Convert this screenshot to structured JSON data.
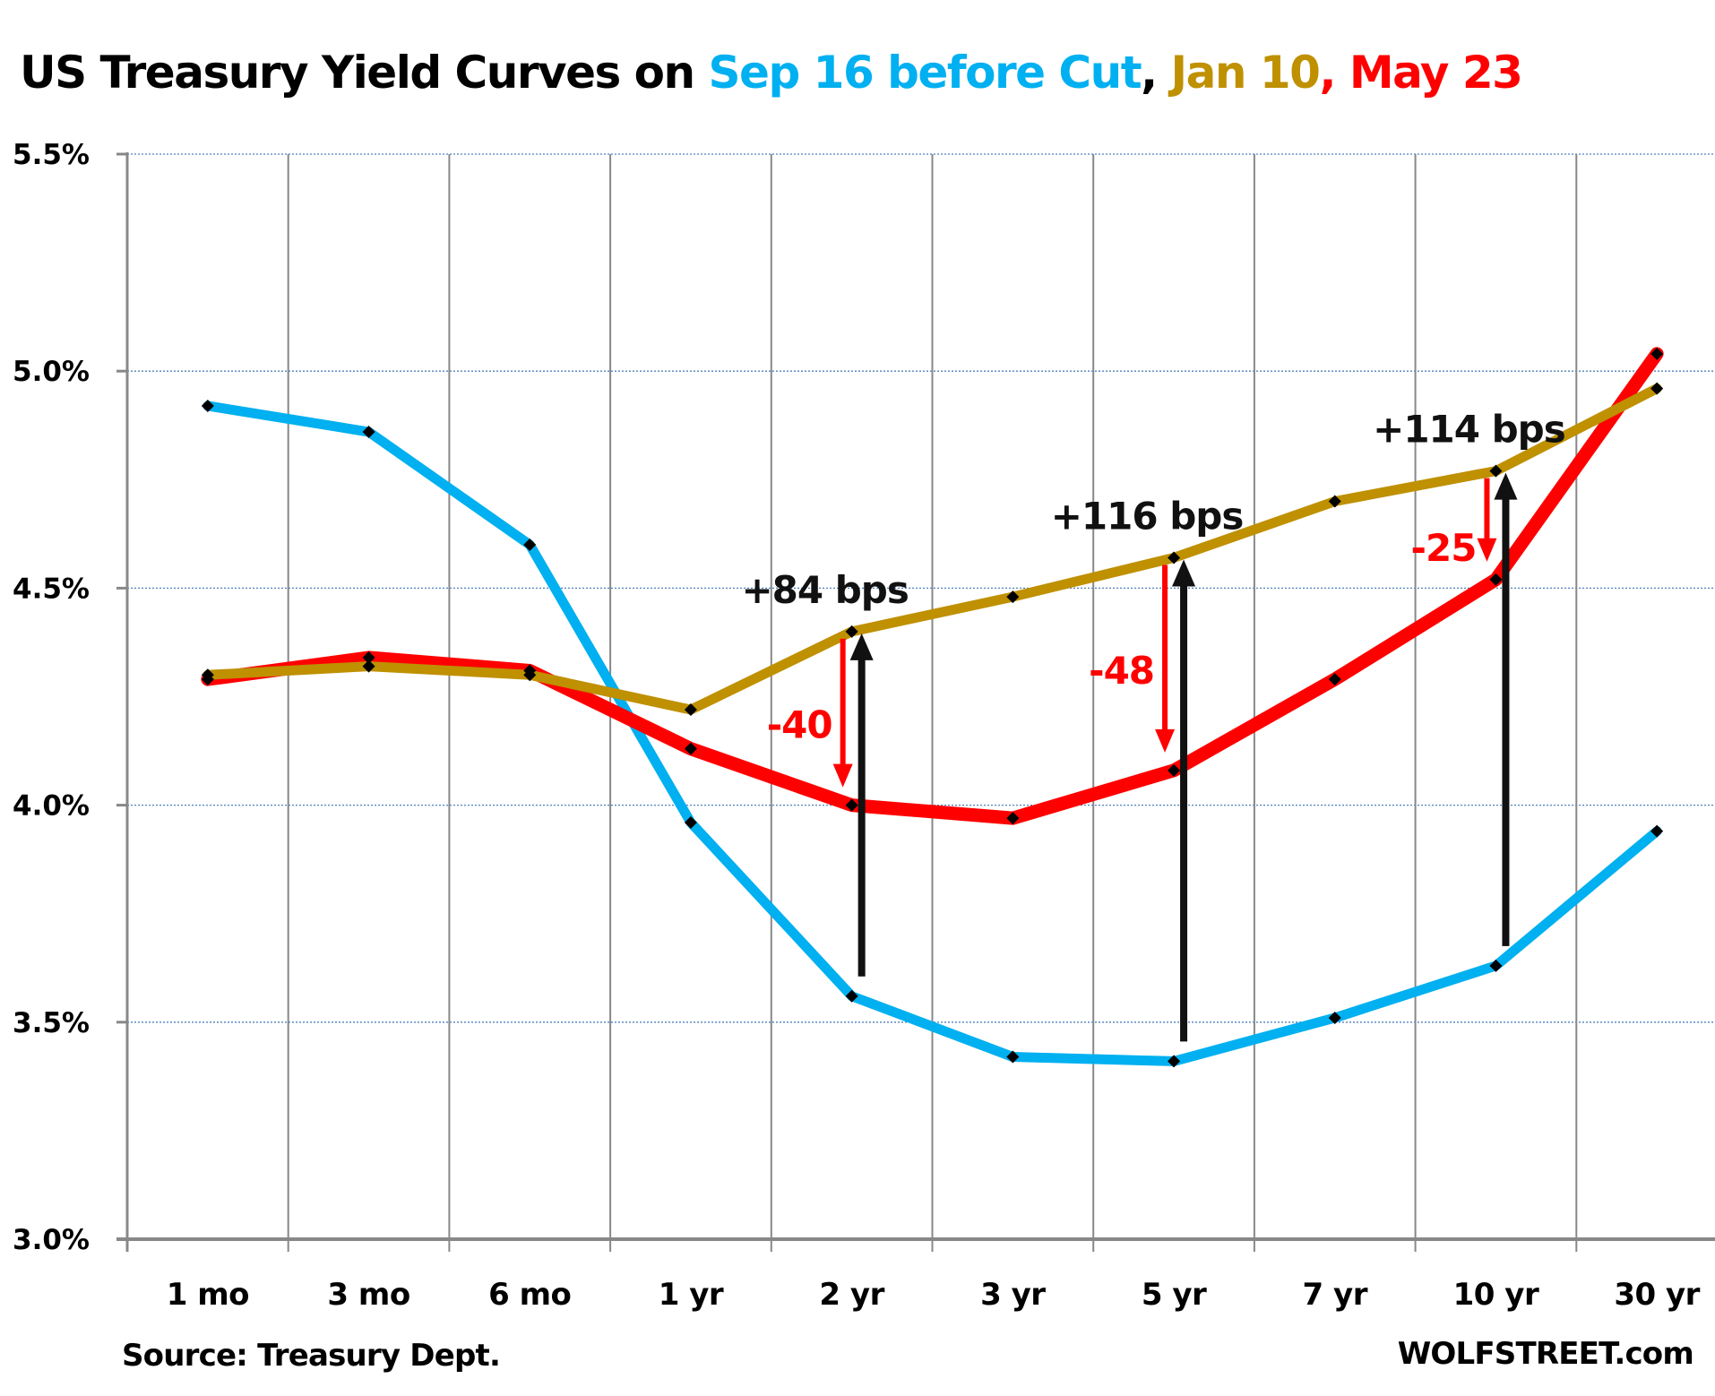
{
  "chart_data": {
    "type": "line",
    "title_parts": [
      {
        "text": "US Treasury Yield Curves on ",
        "color": "#000000"
      },
      {
        "text": "Sep 16 before Cut",
        "color": "#00b0f0"
      },
      {
        "text": ", ",
        "color": "#000000"
      },
      {
        "text": "Jan 10",
        "color": "#bf9000"
      },
      {
        "text": ", ",
        "color": "#ff0000"
      },
      {
        "text": "May 23",
        "color": "#ff0000"
      }
    ],
    "categories": [
      "1 mo",
      "3 mo",
      "6 mo",
      "1 yr",
      "2 yr",
      "3 yr",
      "5 yr",
      "7 yr",
      "10 yr",
      "30 yr"
    ],
    "ylim": [
      3.0,
      5.5
    ],
    "yticks": [
      3.0,
      3.5,
      4.0,
      4.5,
      5.0,
      5.5
    ],
    "ytick_labels": [
      "3.0%",
      "3.5%",
      "4.0%",
      "4.5%",
      "5.0%",
      "5.5%"
    ],
    "ytick_suffix": "%",
    "grid": "horizontal-dotted",
    "xlabel": "",
    "ylabel": "",
    "series": [
      {
        "name": "Sep 16 before Cut",
        "color": "#00b0f0",
        "values": [
          4.92,
          4.86,
          4.6,
          3.96,
          3.56,
          3.42,
          3.41,
          3.51,
          3.63,
          3.94
        ]
      },
      {
        "name": "May 23",
        "color": "#ff0000",
        "values": [
          4.29,
          4.34,
          4.31,
          4.13,
          4.0,
          3.97,
          4.08,
          4.29,
          4.52,
          5.04
        ]
      },
      {
        "name": "Jan 10",
        "color": "#bf9000",
        "values": [
          4.3,
          4.32,
          4.3,
          4.22,
          4.4,
          4.48,
          4.57,
          4.7,
          4.77,
          4.96
        ]
      }
    ],
    "annotations": [
      {
        "category": "2 yr",
        "rise_label": "+84 bps",
        "rise_from": 3.56,
        "rise_to": 4.4,
        "fall_label": "-40",
        "fall_from": 4.4,
        "fall_to": 4.0
      },
      {
        "category": "5 yr",
        "rise_label": "+116 bps",
        "rise_from": 3.41,
        "rise_to": 4.57,
        "fall_label": "-48",
        "fall_from": 4.57,
        "fall_to": 4.08
      },
      {
        "category": "10 yr",
        "rise_label": "+114 bps",
        "rise_from": 3.63,
        "rise_to": 4.77,
        "fall_label": "-25",
        "fall_from": 4.77,
        "fall_to": 4.52
      }
    ],
    "source": "Source: Treasury Dept.",
    "credit": "WOLFSTREET.com"
  }
}
